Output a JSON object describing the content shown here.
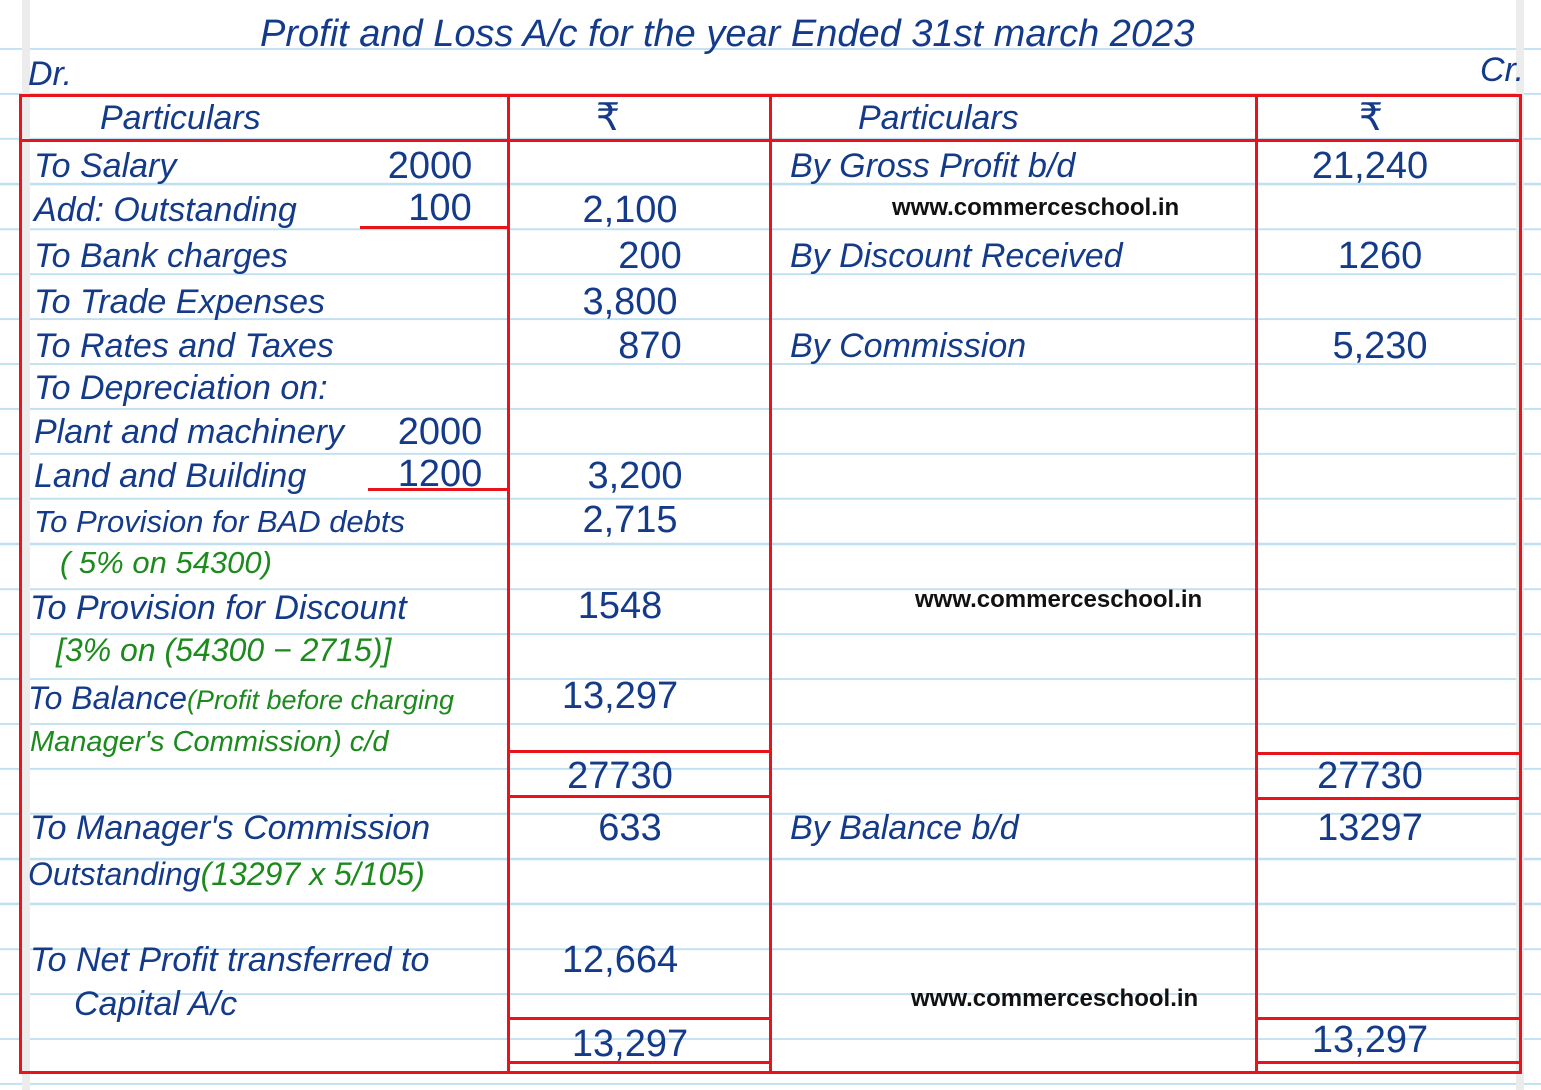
{
  "title": "Profit and Loss A/c for the year Ended 31st march 2023",
  "dr": "Dr.",
  "cr": "Cr.",
  "headers": {
    "particulars_left": "Particulars",
    "amount_left": "₹",
    "particulars_right": "Particulars",
    "amount_right": "₹"
  },
  "debit": {
    "salary": "To Salary",
    "salary_amt": "2000",
    "outstanding": "Add: Outstanding",
    "outstanding_amt": "100",
    "salary_total": "2,100",
    "bank": "To Bank charges",
    "bank_amt": "200",
    "trade": "To Trade Expenses",
    "trade_amt": "3,800",
    "rates": "To Rates and Taxes",
    "rates_amt": "870",
    "dep": "To Depreciation on:",
    "plant": "Plant and machinery",
    "plant_amt": "2000",
    "land": "Land and Building",
    "land_amt": "1200",
    "dep_total": "3,200",
    "bad": "To Provision for BAD debts",
    "bad_amt": "2,715",
    "bad_note": "( 5% on 54300)",
    "disc": "To Provision for Discount",
    "disc_amt": "1548",
    "disc_note": "[3% on (54300 − 2715)]",
    "bal": "To Balance",
    "bal_note": "(Profit before charging",
    "bal_note2": "Manager's Commission) c/d",
    "bal_amt": "13,297",
    "total1": "27730",
    "mgr": "To Manager's Commission",
    "mgr_amt": "633",
    "mgr2": "Outstanding",
    "mgr_note": "(13297 x 5/105)",
    "np": "To Net Profit transferred to",
    "np2": "Capital A/c",
    "np_amt": "12,664",
    "total2": "13,297"
  },
  "credit": {
    "gp": "By Gross Profit b/d",
    "gp_amt": "21,240",
    "dr": "By Discount Received",
    "dr_amt": "1260",
    "comm": "By Commission",
    "comm_amt": "5,230",
    "total1": "27730",
    "bal": "By Balance b/d",
    "bal_amt": "13297",
    "total2": "13,297"
  },
  "watermark": "www.commerceschool.in",
  "colors": {
    "ink": "#143a8a",
    "note": "#1d8a1d",
    "rule": "#e8141c",
    "lines": "#bfe0f0"
  }
}
